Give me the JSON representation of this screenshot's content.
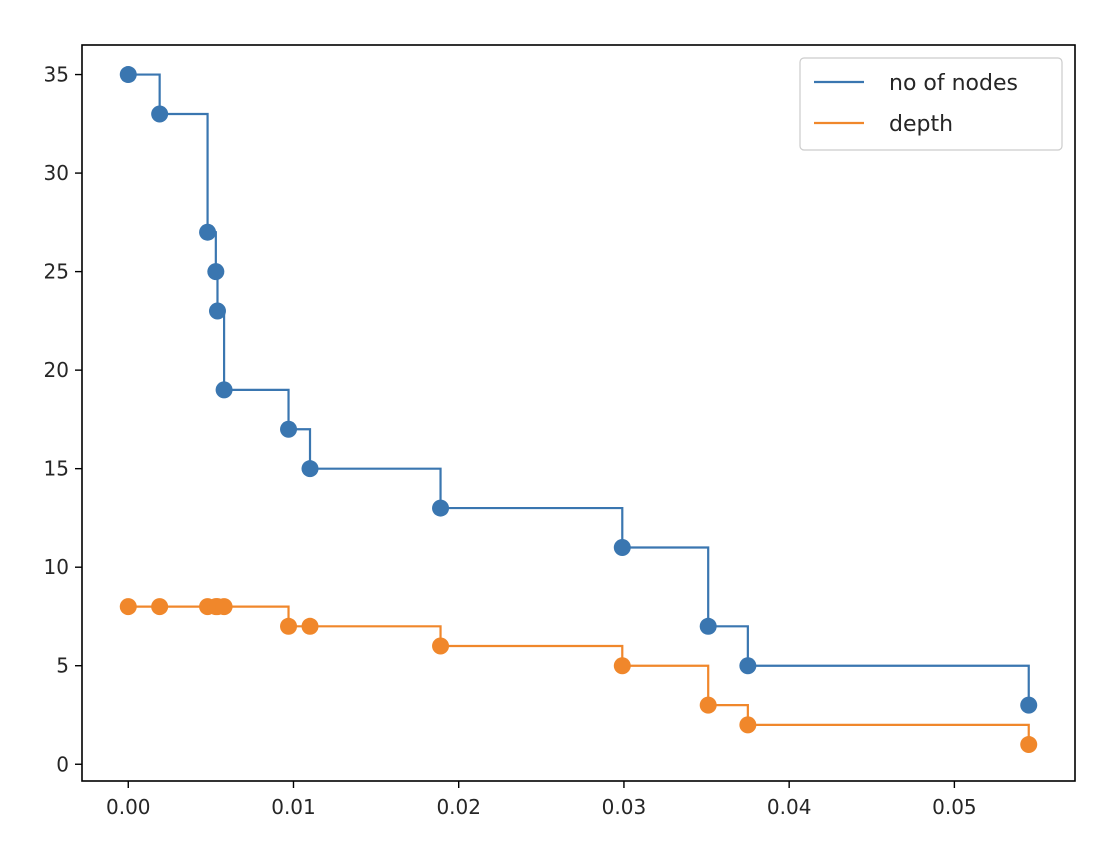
{
  "chart_data": {
    "type": "line",
    "step": "post",
    "title": "",
    "xlabel": "",
    "ylabel": "",
    "xlim": [
      -0.0028,
      0.0573
    ],
    "ylim": [
      -0.85,
      36.5
    ],
    "xticks": [
      0.0,
      0.01,
      0.02,
      0.03,
      0.04,
      0.05
    ],
    "xtick_labels": [
      "0.00",
      "0.01",
      "0.02",
      "0.03",
      "0.04",
      "0.05"
    ],
    "yticks": [
      0,
      5,
      10,
      15,
      20,
      25,
      30,
      35
    ],
    "ytick_labels": [
      "0",
      "5",
      "10",
      "15",
      "20",
      "25",
      "30",
      "35"
    ],
    "grid": false,
    "legend_position": "top-right",
    "x": [
      0.0,
      0.0019,
      0.0048,
      0.0053,
      0.0054,
      0.0058,
      0.0097,
      0.011,
      0.0189,
      0.0299,
      0.0351,
      0.0375,
      0.0545
    ],
    "series": [
      {
        "name": "no of nodes",
        "color": "#3a76b0",
        "values": [
          35,
          33,
          27,
          25,
          23,
          19,
          17,
          15,
          13,
          11,
          7,
          5,
          3
        ]
      },
      {
        "name": "depth",
        "color": "#f0872b",
        "values": [
          8,
          8,
          8,
          8,
          8,
          8,
          7,
          7,
          6,
          5,
          3,
          2,
          1
        ]
      }
    ]
  }
}
